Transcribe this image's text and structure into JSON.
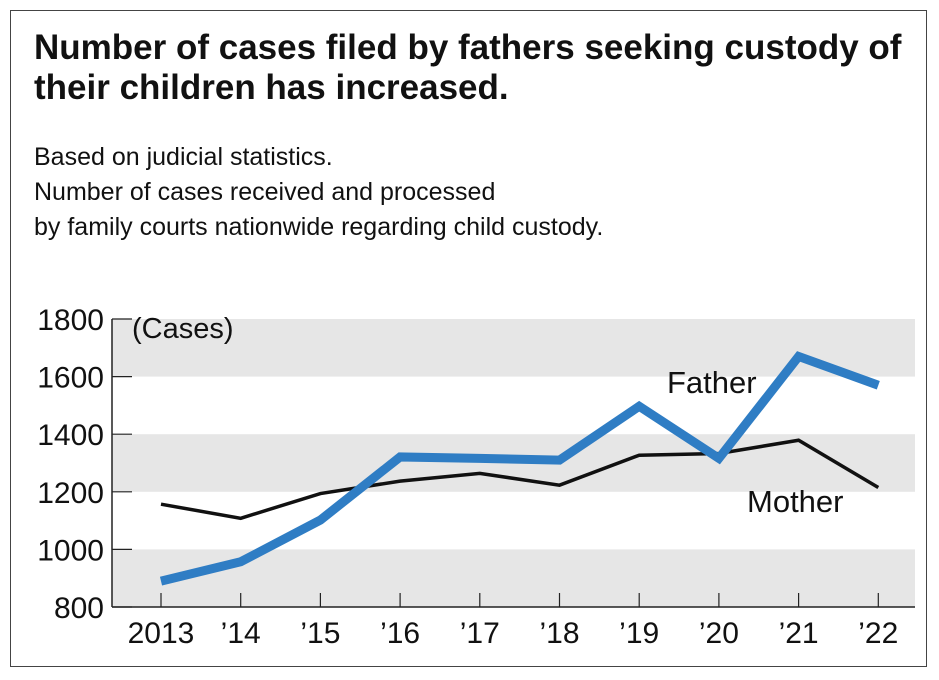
{
  "chart_data": {
    "type": "line",
    "title": "Number of cases filed by fathers seeking custody of their children has increased.",
    "subtitle": [
      "Based on judicial statistics.",
      "Number of cases received and processed",
      "by family courts nationwide regarding child custody."
    ],
    "ylabel": "(Cases)",
    "xlabel": "",
    "categories": [
      "2013",
      "’14",
      "’15",
      "’16",
      "’17",
      "’18",
      "’19",
      "’20",
      "’21",
      "’22"
    ],
    "ylim": [
      800,
      1800
    ],
    "yticks": [
      800,
      1000,
      1200,
      1400,
      1600,
      1800
    ],
    "grid": "alternating horizontal bands",
    "series": [
      {
        "name": "Father",
        "color": "#2f7dc4",
        "values": [
          890,
          957,
          1102,
          1321,
          1316,
          1310,
          1497,
          1316,
          1670,
          1570
        ]
      },
      {
        "name": "Mother",
        "color": "#111111",
        "values": [
          1157,
          1108,
          1194,
          1237,
          1264,
          1223,
          1327,
          1333,
          1379,
          1215
        ]
      }
    ]
  }
}
